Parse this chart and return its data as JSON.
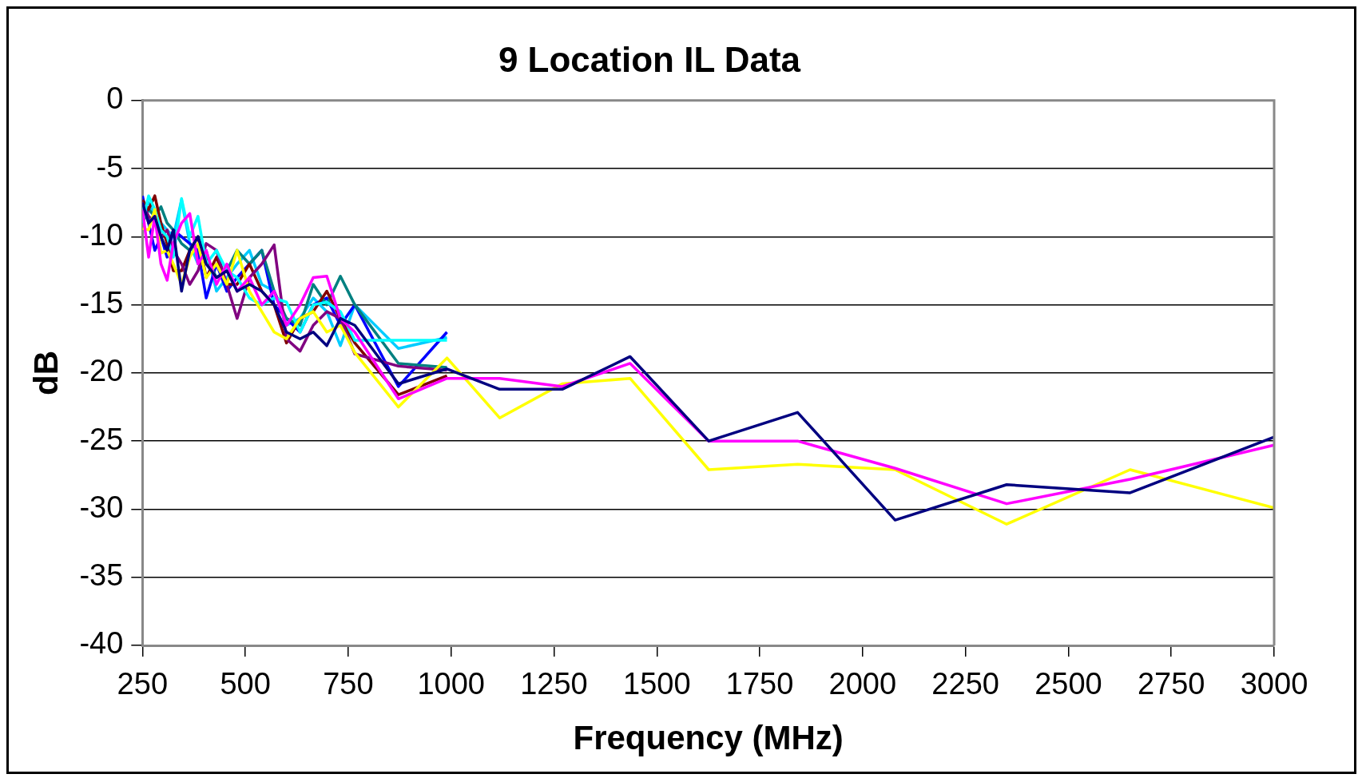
{
  "chart_data": {
    "type": "line",
    "title": "9 Location IL Data",
    "xlabel": "Frequency (MHz)",
    "ylabel": "dB",
    "xlim": [
      250,
      3000
    ],
    "xticks": [
      250,
      500,
      750,
      1000,
      1250,
      1500,
      1750,
      2000,
      2250,
      2500,
      2750,
      3000
    ],
    "ylim": [
      -40,
      0
    ],
    "yticks": [
      -40,
      -35,
      -30,
      -25,
      -20,
      -15,
      -10,
      -5,
      0
    ],
    "grid": "y",
    "legend": false,
    "marker": "none",
    "line_style": "solid",
    "series": [
      {
        "color": "#000080",
        "x": [
          250,
          265,
          280,
          295,
          310,
          325,
          345,
          365,
          385,
          405,
          430,
          455,
          480,
          510,
          540,
          570,
          600,
          633,
          665,
          698,
          731,
          766,
          872,
          990,
          1118,
          1270,
          1435,
          1626,
          1842,
          2079,
          2350,
          2650,
          3000
        ],
        "values": [
          -7.5,
          -9,
          -8.5,
          -10,
          -11,
          -9.5,
          -14,
          -11,
          -10,
          -12,
          -13,
          -12.5,
          -14,
          -13.5,
          -14,
          -15,
          -17,
          -17.5,
          -17,
          -18,
          -16,
          -16.5,
          -20.8,
          -19.7,
          -21.2,
          -21.2,
          -18.8,
          -25,
          -22.9,
          -30.8,
          -28.2,
          -28.8,
          -24.7
        ]
      },
      {
        "color": "#ff00ff",
        "x": [
          250,
          265,
          280,
          295,
          310,
          325,
          345,
          365,
          385,
          405,
          430,
          455,
          480,
          510,
          540,
          570,
          600,
          633,
          665,
          698,
          731,
          766,
          872,
          990,
          1118,
          1270,
          1435,
          1626,
          1842,
          2079,
          2350,
          2650,
          3000
        ],
        "values": [
          -8,
          -11.5,
          -8.5,
          -12,
          -13.2,
          -10.5,
          -9,
          -8.3,
          -12,
          -11,
          -13.5,
          -12,
          -14,
          -13,
          -15,
          -14,
          -16.5,
          -15,
          -13,
          -12.9,
          -16,
          -17,
          -21.9,
          -20.4,
          -20.4,
          -21,
          -19.3,
          -25,
          -25,
          -27,
          -29.6,
          -27.8,
          -25.3
        ]
      },
      {
        "color": "#ffff00",
        "x": [
          250,
          265,
          280,
          295,
          310,
          325,
          345,
          365,
          385,
          405,
          430,
          455,
          480,
          510,
          540,
          570,
          600,
          633,
          665,
          698,
          731,
          766,
          872,
          990,
          1118,
          1270,
          1435,
          1626,
          1842,
          2079,
          2350,
          2650,
          3000
        ],
        "values": [
          -9.4,
          -9.5,
          -8,
          -11.2,
          -11,
          -12,
          -13.5,
          -11.5,
          -10.5,
          -13,
          -12,
          -13.5,
          -11,
          -14,
          -15.5,
          -17,
          -17.5,
          -16,
          -15.5,
          -17,
          -16.5,
          -18.5,
          -22.5,
          -18.9,
          -23.3,
          -20.8,
          -20.4,
          -27.1,
          -26.7,
          -27.1,
          -31.1,
          -27.1,
          -29.9
        ]
      },
      {
        "color": "#00ffff",
        "x": [
          250,
          265,
          280,
          295,
          310,
          325,
          345,
          365,
          385,
          405,
          430,
          455,
          480,
          510,
          540,
          570,
          600,
          633,
          665,
          698,
          731,
          766,
          872,
          990
        ],
        "values": [
          -9,
          -7,
          -8,
          -9.5,
          -10,
          -11.5,
          -7.2,
          -10,
          -8.5,
          -12,
          -11,
          -12.5,
          -13,
          -14.5,
          -15,
          -14.5,
          -14.8,
          -17,
          -15,
          -14.8,
          -15.5,
          -17.6,
          -17.6,
          -17.6
        ]
      },
      {
        "color": "#800080",
        "x": [
          250,
          265,
          280,
          295,
          310,
          325,
          345,
          365,
          385,
          405,
          430,
          455,
          480,
          510,
          540,
          570,
          600,
          633,
          665,
          698,
          731,
          766,
          872,
          990
        ],
        "values": [
          -7.5,
          -8.5,
          -9,
          -10,
          -9.5,
          -11,
          -12,
          -13.5,
          -12.5,
          -10.5,
          -11,
          -13.5,
          -16,
          -13,
          -12,
          -10.6,
          -17.5,
          -18.4,
          -16.5,
          -15.5,
          -16,
          -18.6,
          -19.5,
          -19.8
        ]
      },
      {
        "color": "#800000",
        "x": [
          250,
          265,
          280,
          295,
          310,
          325,
          345,
          365,
          385,
          405,
          430,
          455,
          480,
          510,
          540,
          570,
          600,
          633,
          665,
          698,
          731,
          766,
          872,
          990
        ],
        "values": [
          -7.3,
          -8,
          -7,
          -9,
          -10.5,
          -12.5,
          -12.5,
          -11,
          -10,
          -13,
          -11.5,
          -13.5,
          -13.5,
          -12,
          -14,
          -15,
          -17.8,
          -16,
          -15.5,
          -14,
          -16,
          -17.8,
          -21.6,
          -20.2
        ]
      },
      {
        "color": "#008080",
        "x": [
          250,
          265,
          280,
          295,
          310,
          325,
          345,
          365,
          385,
          405,
          430,
          455,
          480,
          510,
          540,
          570,
          600,
          633,
          665,
          698,
          731,
          766,
          872,
          990
        ],
        "values": [
          -9,
          -8,
          -8.5,
          -7.8,
          -9,
          -9.5,
          -10.5,
          -11,
          -10,
          -11.5,
          -13,
          -12.5,
          -11,
          -12,
          -11,
          -14,
          -16,
          -16.5,
          -13.5,
          -15,
          -12.9,
          -15,
          -19.3,
          -19.6
        ]
      },
      {
        "color": "#0000ff",
        "x": [
          250,
          265,
          280,
          295,
          310,
          325,
          345,
          365,
          385,
          405,
          430,
          455,
          480,
          510,
          540,
          570,
          600,
          633,
          665,
          698,
          731,
          766,
          872,
          990
        ],
        "values": [
          -7,
          -9,
          -11,
          -10,
          -11.5,
          -9.5,
          -10,
          -10.5,
          -11,
          -14.5,
          -12,
          -14,
          -13,
          -12,
          -11,
          -15,
          -16,
          -17,
          -15,
          -14.5,
          -16.5,
          -15,
          -21,
          -17
        ]
      },
      {
        "color": "#00ccff",
        "x": [
          250,
          265,
          280,
          295,
          310,
          325,
          345,
          365,
          385,
          405,
          430,
          455,
          480,
          510,
          540,
          570,
          600,
          633,
          665,
          698,
          731,
          766,
          872,
          990
        ],
        "values": [
          -8,
          -7.5,
          -8.5,
          -9,
          -9.5,
          -10,
          -7.3,
          -10.5,
          -12,
          -11,
          -14,
          -13,
          -12,
          -11,
          -13.5,
          -14,
          -16.5,
          -16,
          -14.5,
          -15.5,
          -18,
          -15,
          -18.2,
          -17.4
        ]
      }
    ]
  }
}
